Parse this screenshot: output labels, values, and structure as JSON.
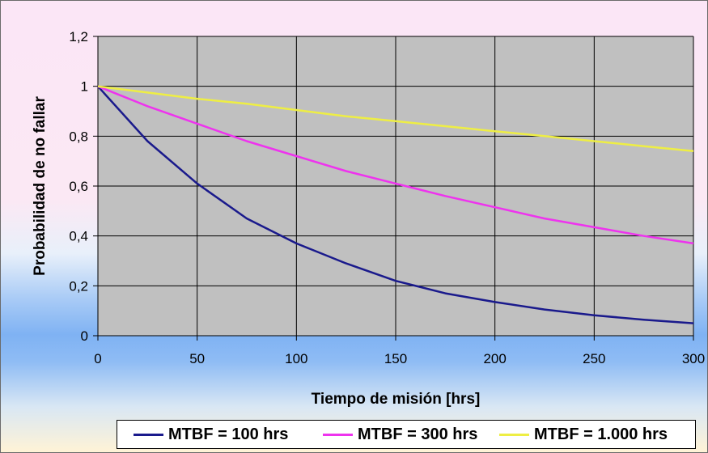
{
  "chart_data": {
    "type": "line",
    "xlabel": "Tiempo de misión [hrs]",
    "ylabel": "Probabilidad de no fallar",
    "xlim": [
      0,
      300
    ],
    "ylim": [
      0,
      1.2
    ],
    "x_ticks": [
      "0",
      "50",
      "100",
      "150",
      "200",
      "250",
      "300"
    ],
    "y_ticks": [
      "0",
      "0,2",
      "0,4",
      "0,6",
      "0,8",
      "1",
      "1,2"
    ],
    "grid": true,
    "legend_position": "bottom",
    "plot_background": "#c0c0c0",
    "x": [
      0,
      25,
      50,
      75,
      100,
      125,
      150,
      175,
      200,
      225,
      250,
      275,
      300
    ],
    "series": [
      {
        "name": "MTBF = 100 hrs",
        "color": "#1a1a8c",
        "values": [
          1.0,
          0.78,
          0.61,
          0.47,
          0.37,
          0.29,
          0.22,
          0.17,
          0.135,
          0.105,
          0.082,
          0.064,
          0.05
        ]
      },
      {
        "name": "MTBF = 300 hrs",
        "color": "#ee33ee",
        "values": [
          1.0,
          0.92,
          0.85,
          0.78,
          0.72,
          0.66,
          0.61,
          0.56,
          0.515,
          0.47,
          0.435,
          0.4,
          0.37
        ]
      },
      {
        "name": "MTBF = 1.000 hrs",
        "color": "#eeee44",
        "values": [
          1.0,
          0.975,
          0.95,
          0.93,
          0.905,
          0.88,
          0.86,
          0.84,
          0.82,
          0.8,
          0.78,
          0.76,
          0.74
        ]
      }
    ]
  }
}
